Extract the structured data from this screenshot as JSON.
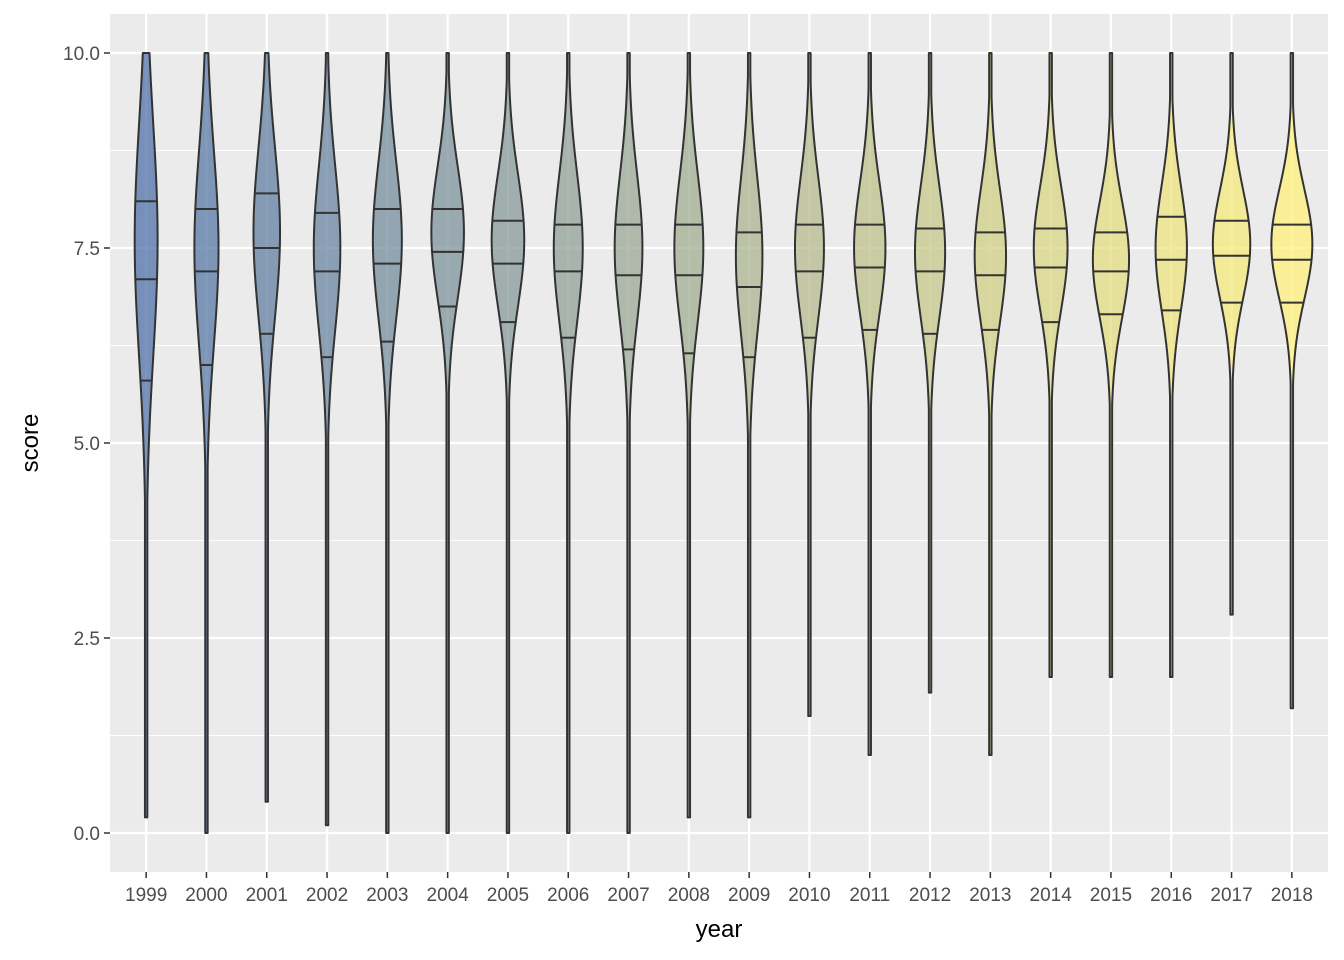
{
  "chart_data": {
    "type": "violin",
    "xlabel": "year",
    "ylabel": "score",
    "ylim": [
      -0.5,
      10.5
    ],
    "yticks": [
      0.0,
      2.5,
      5.0,
      7.5,
      10.0
    ],
    "ytick_labels": [
      "0.0",
      "2.5",
      "5.0",
      "7.5",
      "10.0"
    ],
    "grid": true,
    "legend": "none",
    "quantile_lines": [
      0.25,
      0.5,
      0.75
    ],
    "fill_gradient": [
      "#4f72a8",
      "#fff07a"
    ],
    "categories": [
      "1999",
      "2000",
      "2001",
      "2002",
      "2003",
      "2004",
      "2005",
      "2006",
      "2007",
      "2008",
      "2009",
      "2010",
      "2011",
      "2012",
      "2013",
      "2014",
      "2015",
      "2016",
      "2017",
      "2018"
    ],
    "violins": [
      {
        "year": "1999",
        "min": 0.2,
        "max": 10.0,
        "q25": 5.8,
        "median": 7.1,
        "q75": 8.1,
        "mode": 7.6,
        "spread": 1.5,
        "half_width": 0.19
      },
      {
        "year": "2000",
        "min": 0.0,
        "max": 10.0,
        "q25": 6.0,
        "median": 7.2,
        "q75": 8.0,
        "mode": 7.5,
        "spread": 1.25,
        "half_width": 0.2
      },
      {
        "year": "2001",
        "min": 0.4,
        "max": 10.0,
        "q25": 6.4,
        "median": 7.5,
        "q75": 8.2,
        "mode": 7.7,
        "spread": 1.1,
        "half_width": 0.22
      },
      {
        "year": "2002",
        "min": 0.1,
        "max": 10.0,
        "q25": 6.1,
        "median": 7.2,
        "q75": 7.95,
        "mode": 7.5,
        "spread": 1.05,
        "half_width": 0.22
      },
      {
        "year": "2003",
        "min": 0.0,
        "max": 10.0,
        "q25": 6.3,
        "median": 7.3,
        "q75": 8.0,
        "mode": 7.6,
        "spread": 1.0,
        "half_width": 0.24
      },
      {
        "year": "2004",
        "min": 0.0,
        "max": 10.0,
        "q25": 6.75,
        "median": 7.45,
        "q75": 8.0,
        "mode": 7.7,
        "spread": 0.85,
        "half_width": 0.27
      },
      {
        "year": "2005",
        "min": 0.0,
        "max": 10.0,
        "q25": 6.55,
        "median": 7.3,
        "q75": 7.85,
        "mode": 7.6,
        "spread": 0.85,
        "half_width": 0.27
      },
      {
        "year": "2006",
        "min": 0.0,
        "max": 10.0,
        "q25": 6.35,
        "median": 7.2,
        "q75": 7.8,
        "mode": 7.5,
        "spread": 0.95,
        "half_width": 0.24
      },
      {
        "year": "2007",
        "min": 0.0,
        "max": 10.0,
        "q25": 6.2,
        "median": 7.15,
        "q75": 7.8,
        "mode": 7.5,
        "spread": 0.95,
        "half_width": 0.23
      },
      {
        "year": "2008",
        "min": 0.2,
        "max": 10.0,
        "q25": 6.15,
        "median": 7.15,
        "q75": 7.8,
        "mode": 7.5,
        "spread": 0.95,
        "half_width": 0.24
      },
      {
        "year": "2009",
        "min": 0.2,
        "max": 10.0,
        "q25": 6.1,
        "median": 7.0,
        "q75": 7.7,
        "mode": 7.4,
        "spread": 1.0,
        "half_width": 0.22
      },
      {
        "year": "2010",
        "min": 1.5,
        "max": 10.0,
        "q25": 6.35,
        "median": 7.2,
        "q75": 7.8,
        "mode": 7.5,
        "spread": 0.9,
        "half_width": 0.24
      },
      {
        "year": "2011",
        "min": 1.0,
        "max": 10.0,
        "q25": 6.45,
        "median": 7.25,
        "q75": 7.8,
        "mode": 7.5,
        "spread": 0.85,
        "half_width": 0.26
      },
      {
        "year": "2012",
        "min": 1.8,
        "max": 10.0,
        "q25": 6.4,
        "median": 7.2,
        "q75": 7.75,
        "mode": 7.45,
        "spread": 0.85,
        "half_width": 0.25
      },
      {
        "year": "2013",
        "min": 1.0,
        "max": 10.0,
        "q25": 6.45,
        "median": 7.15,
        "q75": 7.7,
        "mode": 7.4,
        "spread": 0.85,
        "half_width": 0.26
      },
      {
        "year": "2014",
        "min": 2.0,
        "max": 10.0,
        "q25": 6.55,
        "median": 7.25,
        "q75": 7.75,
        "mode": 7.5,
        "spread": 0.8,
        "half_width": 0.28
      },
      {
        "year": "2015",
        "min": 2.0,
        "max": 10.0,
        "q25": 6.65,
        "median": 7.2,
        "q75": 7.7,
        "mode": 7.35,
        "spread": 0.75,
        "half_width": 0.3
      },
      {
        "year": "2016",
        "min": 2.0,
        "max": 10.0,
        "q25": 6.7,
        "median": 7.35,
        "q75": 7.9,
        "mode": 7.5,
        "spread": 0.8,
        "half_width": 0.26
      },
      {
        "year": "2017",
        "min": 2.8,
        "max": 10.0,
        "q25": 6.8,
        "median": 7.4,
        "q75": 7.85,
        "mode": 7.55,
        "spread": 0.7,
        "half_width": 0.31
      },
      {
        "year": "2018",
        "min": 1.6,
        "max": 10.0,
        "q25": 6.8,
        "median": 7.35,
        "q75": 7.8,
        "mode": 7.55,
        "spread": 0.7,
        "half_width": 0.34
      }
    ]
  }
}
